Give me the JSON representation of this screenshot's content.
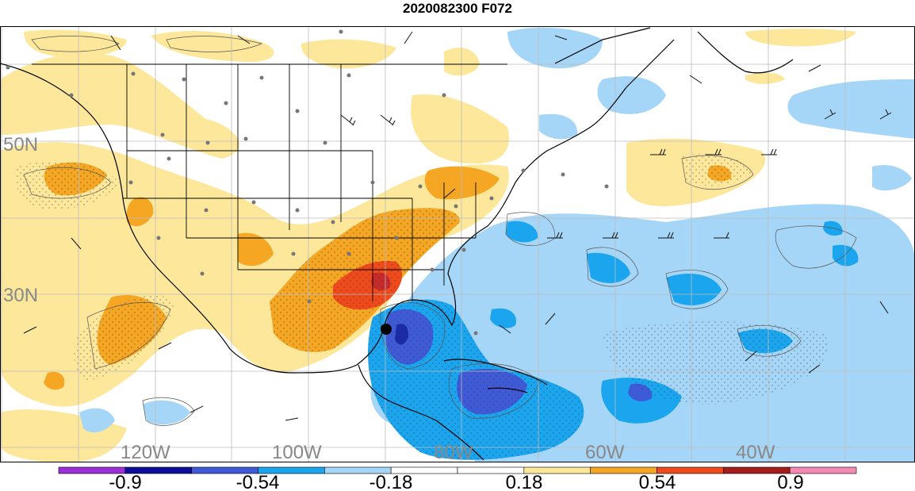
{
  "title": "2020082300 F072",
  "lat_labels": [
    "50N",
    "30N"
  ],
  "lon_labels": [
    "120W",
    "100W",
    "80W",
    "60W",
    "40W"
  ],
  "colorbar": {
    "tick_labels": [
      "-0.9",
      "-0.54",
      "-0.18",
      "0.18",
      "0.54",
      "0.9"
    ],
    "colors": [
      "#9b30d9",
      "#0b0f9c",
      "#3f5ad6",
      "#1aa5ee",
      "#a6d6f7",
      "#ffffff",
      "#ffffff",
      "#fde79a",
      "#f5a623",
      "#ee4a1b",
      "#a51c1c",
      "#f58bb5"
    ]
  },
  "field_colors": {
    "weak_positive": "#fde79a",
    "moderate_positive": "#f5a623",
    "strong_positive": "#ee4a1b",
    "very_strong_positive": "#c62a2a",
    "weak_negative": "#a6d6f7",
    "moderate_negative": "#1aa5ee",
    "strong_negative": "#3f5ad6",
    "very_strong_negative": "#1b2aa8"
  },
  "grid_label_color": "#888888",
  "marker": "storm-center-marker"
}
